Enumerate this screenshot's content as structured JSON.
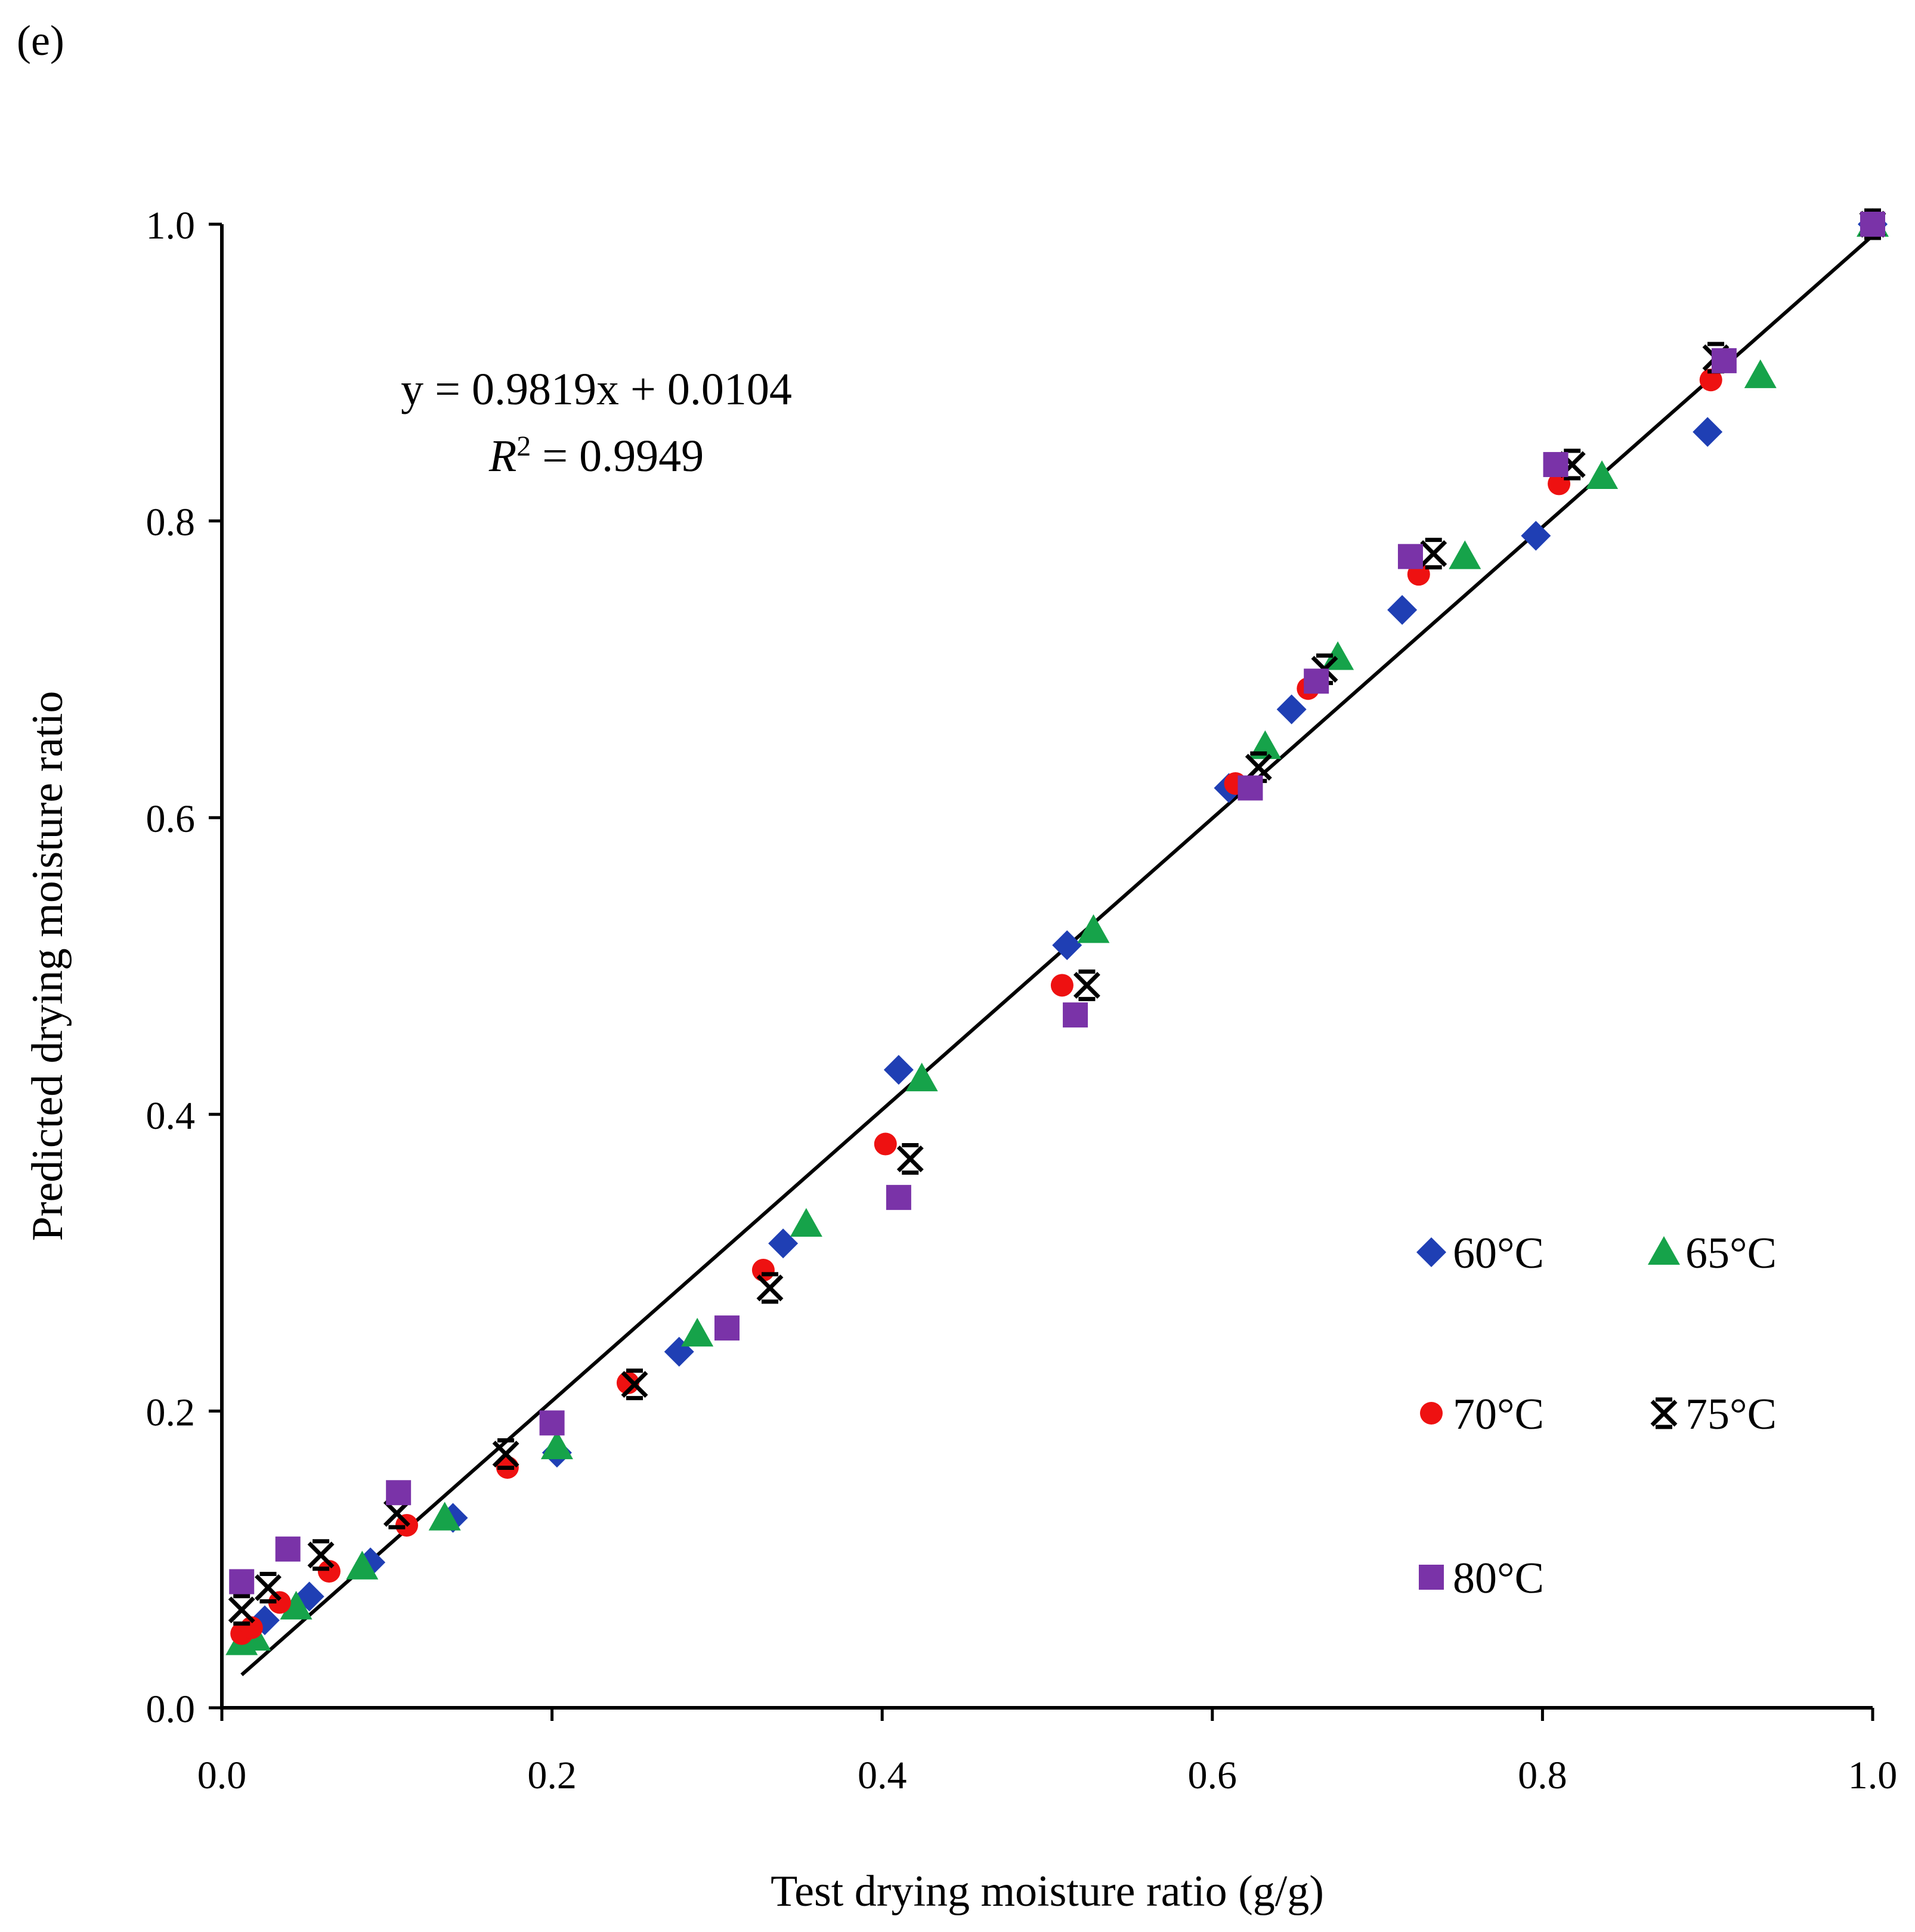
{
  "panel_label": "(e)",
  "equation": {
    "line1": "y = 0.9819x + 0.0104",
    "r2_prefix": "R",
    "r2_sup": "2",
    "r2_value": " = 0.9949"
  },
  "colors": {
    "60": "#1f3fb4",
    "65": "#16a34a",
    "70": "#ee1111",
    "75": "#000000",
    "80": "#7a33a8",
    "fit": "#000000"
  },
  "chart_data": {
    "type": "scatter",
    "title": "",
    "xlabel": "Test drying moisture ratio (g/g)",
    "ylabel": "Predicted drying moisture ratio",
    "xlim": [
      0,
      1
    ],
    "ylim": [
      0,
      1
    ],
    "xticks": [
      "0.0",
      "0.2",
      "0.4",
      "0.6",
      "0.8",
      "1.0"
    ],
    "yticks": [
      "0.0",
      "0.2",
      "0.4",
      "0.6",
      "0.8",
      "1.0"
    ],
    "grid": false,
    "legend_position": "bottom-right",
    "fit_line": {
      "slope": 0.9819,
      "intercept": 0.0104,
      "x_range": [
        0.012,
        1.0
      ]
    },
    "series": [
      {
        "name": "60°C",
        "marker": "diamond",
        "color": "#1f3fb4",
        "points": [
          [
            0.015,
            0.046
          ],
          [
            0.026,
            0.059
          ],
          [
            0.053,
            0.075
          ],
          [
            0.09,
            0.098
          ],
          [
            0.14,
            0.128
          ],
          [
            0.203,
            0.172
          ],
          [
            0.277,
            0.24
          ],
          [
            0.34,
            0.313
          ],
          [
            0.41,
            0.43
          ],
          [
            0.512,
            0.514
          ],
          [
            0.61,
            0.62
          ],
          [
            0.648,
            0.673
          ],
          [
            0.715,
            0.74
          ],
          [
            0.796,
            0.79
          ],
          [
            0.9,
            0.86
          ],
          [
            1.0,
            1.0
          ]
        ]
      },
      {
        "name": "65°C",
        "marker": "triangle",
        "color": "#16a34a",
        "points": [
          [
            0.012,
            0.044
          ],
          [
            0.02,
            0.047
          ],
          [
            0.045,
            0.068
          ],
          [
            0.085,
            0.095
          ],
          [
            0.135,
            0.128
          ],
          [
            0.203,
            0.176
          ],
          [
            0.288,
            0.252
          ],
          [
            0.354,
            0.326
          ],
          [
            0.424,
            0.424
          ],
          [
            0.528,
            0.524
          ],
          [
            0.632,
            0.648
          ],
          [
            0.676,
            0.708
          ],
          [
            0.753,
            0.776
          ],
          [
            0.836,
            0.83
          ],
          [
            0.932,
            0.898
          ],
          [
            1.0,
            1.0
          ]
        ]
      },
      {
        "name": "70°C",
        "marker": "circle",
        "color": "#ee1111",
        "points": [
          [
            0.012,
            0.05
          ],
          [
            0.018,
            0.054
          ],
          [
            0.035,
            0.071
          ],
          [
            0.065,
            0.092
          ],
          [
            0.112,
            0.123
          ],
          [
            0.173,
            0.162
          ],
          [
            0.246,
            0.219
          ],
          [
            0.328,
            0.295
          ],
          [
            0.402,
            0.38
          ],
          [
            0.509,
            0.487
          ],
          [
            0.614,
            0.623
          ],
          [
            0.658,
            0.687
          ],
          [
            0.725,
            0.764
          ],
          [
            0.81,
            0.825
          ],
          [
            0.902,
            0.895
          ],
          [
            1.0,
            1.0
          ]
        ]
      },
      {
        "name": "75°C",
        "marker": "asterisk",
        "color": "#000000",
        "points": [
          [
            0.012,
            0.066
          ],
          [
            0.028,
            0.081
          ],
          [
            0.06,
            0.103
          ],
          [
            0.106,
            0.131
          ],
          [
            0.172,
            0.171
          ],
          [
            0.25,
            0.218
          ],
          [
            0.332,
            0.283
          ],
          [
            0.417,
            0.37
          ],
          [
            0.524,
            0.487
          ],
          [
            0.628,
            0.634
          ],
          [
            0.668,
            0.7
          ],
          [
            0.734,
            0.778
          ],
          [
            0.818,
            0.838
          ],
          [
            0.905,
            0.91
          ],
          [
            1.0,
            1.0
          ]
        ]
      },
      {
        "name": "80°C",
        "marker": "square",
        "color": "#7a33a8",
        "points": [
          [
            0.012,
            0.085
          ],
          [
            0.04,
            0.107
          ],
          [
            0.107,
            0.145
          ],
          [
            0.2,
            0.192
          ],
          [
            0.306,
            0.256
          ],
          [
            0.41,
            0.344
          ],
          [
            0.517,
            0.467
          ],
          [
            0.623,
            0.62
          ],
          [
            0.663,
            0.692
          ],
          [
            0.72,
            0.776
          ],
          [
            0.808,
            0.838
          ],
          [
            0.91,
            0.908
          ],
          [
            1.0,
            1.0
          ]
        ]
      }
    ]
  }
}
